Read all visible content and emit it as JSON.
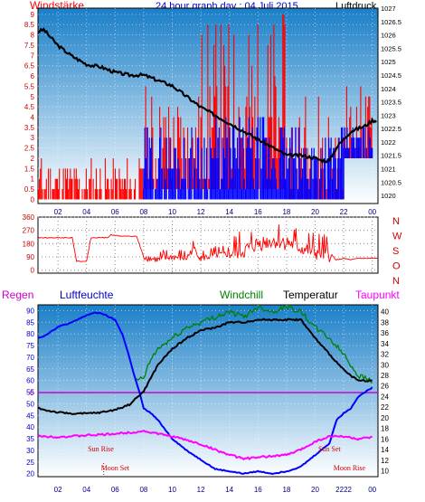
{
  "header": {
    "wind_label": "Windstärke",
    "title": "24 hour graph day : 04 Juli 2015",
    "pressure_label": "Luftdruck",
    "direction_letters": [
      "N",
      "W",
      "S",
      "O",
      "N"
    ],
    "rain_label": "Regen",
    "humidity_label": "Luftfeuchte",
    "windchill_label": "Windchill",
    "temperature_label": "Temperatur",
    "dewpoint_label": "Taupunkt"
  },
  "colors": {
    "panel_top": "#1a7fc8",
    "panel_bottom": "#ffffff",
    "wind": "#ff0000",
    "gust": "#0000ff",
    "pressure": "#000000",
    "direction": "#ff0000",
    "humidity": "#0000ff",
    "windchill": "#008000",
    "temperature": "#000000",
    "dewpoint": "#ff00ff",
    "rain": "#cc00cc",
    "astro": "#cc0000"
  },
  "chart_data": [
    {
      "type": "line",
      "name": "wind-pressure",
      "x_ticks": [
        "02",
        "04",
        "06",
        "08",
        "10",
        "12",
        "14",
        "16",
        "18",
        "20",
        "22",
        "00"
      ],
      "left_axis": {
        "label": "Windstärke",
        "ticks": [
          "0",
          "0.5",
          "1",
          "1.5",
          "2",
          "2.5",
          "3",
          "3.5",
          "4",
          "4.5",
          "5",
          "5.5",
          "6",
          "6.5",
          "7",
          "7.5",
          "8",
          "8.5",
          "9"
        ],
        "ylim": [
          0,
          9
        ]
      },
      "right_axis": {
        "label": "Luftdruck",
        "ticks": [
          "1020",
          "1020.5",
          "1021",
          "1021.5",
          "1022",
          "1022.5",
          "1023",
          "1023.5",
          "1024",
          "1024.5",
          "1025",
          "1025.5",
          "1026",
          "1026.5",
          "1027"
        ],
        "ylim": [
          1019.7,
          1027
        ]
      },
      "pressure": {
        "x": [
          0,
          0.5,
          1,
          1.5,
          2,
          3,
          4,
          5,
          6,
          7,
          8,
          9,
          10,
          11,
          12,
          13,
          14,
          15,
          16,
          17,
          18,
          19,
          20,
          20.5,
          21,
          21.5,
          22,
          22.5,
          23,
          23.5,
          24
        ],
        "y": [
          1026.2,
          1026.1,
          1026.2,
          1025.9,
          1025.6,
          1025.2,
          1024.9,
          1024.8,
          1024.6,
          1024.5,
          1024.5,
          1024.3,
          1024.1,
          1023.7,
          1023.3,
          1023,
          1022.7,
          1022.4,
          1022.1,
          1021.8,
          1021.5,
          1021.5,
          1021.4,
          1021.3,
          1021.3,
          1021.8,
          1022.1,
          1022.4,
          1022.5,
          1022.6,
          1022.8
        ]
      },
      "wind_segments": [
        {
          "x0": 0,
          "x1": 3,
          "low": 0,
          "high": 2
        },
        {
          "x0": 3,
          "x1": 8,
          "low": 0,
          "high": 2
        },
        {
          "x0": 8,
          "x1": 12,
          "low": 0.5,
          "high": 5.5
        },
        {
          "x0": 12,
          "x1": 18,
          "low": 0.5,
          "high": 9
        },
        {
          "x0": 18,
          "x1": 21,
          "low": 0,
          "high": 5.5
        },
        {
          "x0": 21,
          "x1": 22,
          "low": 0,
          "high": 3.5
        },
        {
          "x0": 22,
          "x1": 24,
          "low": 2,
          "high": 5.5
        }
      ],
      "gust_segments": [
        {
          "x0": 0,
          "x1": 8,
          "low": 0,
          "high": 0
        },
        {
          "x0": 8,
          "x1": 12,
          "low": 0,
          "high": 3.5
        },
        {
          "x0": 12,
          "x1": 18,
          "low": 0,
          "high": 4
        },
        {
          "x0": 18,
          "x1": 22,
          "low": 0,
          "high": 3.5
        },
        {
          "x0": 22,
          "x1": 24,
          "low": 2,
          "high": 3.5
        }
      ]
    },
    {
      "type": "line",
      "name": "wind-direction",
      "x_ticks": [
        "02",
        "04",
        "06",
        "08",
        "10",
        "12",
        "14",
        "16",
        "18",
        "20",
        "22",
        "00"
      ],
      "left_axis": {
        "ticks": [
          "0",
          "90",
          "180",
          "270",
          "360"
        ],
        "ylim": [
          -20,
          360
        ]
      },
      "direction": {
        "x": [
          0,
          3,
          3.3,
          4,
          4.3,
          5.5,
          5.7,
          6.5,
          7.5,
          8,
          9,
          10,
          11,
          11.5,
          12,
          13,
          14,
          15,
          16,
          17,
          18,
          19,
          20,
          21,
          21.5,
          22,
          22.5,
          23,
          24
        ],
        "y": [
          220,
          220,
          60,
          60,
          220,
          220,
          240,
          230,
          230,
          90,
          70,
          90,
          80,
          150,
          80,
          100,
          110,
          130,
          180,
          200,
          190,
          150,
          120,
          100,
          70,
          80,
          70,
          80,
          80
        ]
      },
      "noise_range": [
        8,
        21.3
      ]
    },
    {
      "type": "line",
      "name": "temp-humidity",
      "x_ticks": [
        "02",
        "04",
        "06",
        "08",
        "10",
        "12",
        "14",
        "16",
        "18",
        "20",
        "22",
        "00"
      ],
      "left_axis": {
        "ticks": [
          "20",
          "25",
          "30",
          "35",
          "40",
          "45",
          "50",
          "55",
          "60",
          "65",
          "70",
          "75",
          "80",
          "85",
          "90"
        ],
        "ylim": [
          18.7,
          92.5
        ]
      },
      "right_axis": {
        "ticks": [
          "10",
          "12",
          "14",
          "16",
          "18",
          "20",
          "22",
          "24",
          "26",
          "28",
          "30",
          "32",
          "34",
          "36",
          "38",
          "40"
        ],
        "ylim": [
          8.9,
          41.3
        ]
      },
      "rain_zero_label": "0",
      "series": [
        {
          "name": "Luftfeuchte",
          "axis": "left",
          "x": [
            0,
            0.3,
            1,
            1.5,
            2,
            3,
            4,
            4.5,
            5,
            6,
            6.5,
            7,
            7.3,
            7.7,
            8,
            8.5,
            9,
            10,
            11,
            12,
            13,
            14,
            15,
            16,
            17,
            18,
            19,
            20,
            21,
            21.5,
            22,
            22.5,
            23,
            23.5,
            24
          ],
          "y": [
            74,
            78,
            79,
            81,
            83,
            85,
            88,
            89,
            89,
            86,
            80,
            70,
            63,
            55,
            48,
            46,
            43,
            35,
            30,
            26,
            22,
            21,
            20,
            21,
            20,
            21,
            23,
            28,
            33,
            43,
            46,
            48,
            53,
            55,
            57
          ]
        },
        {
          "name": "Windchill",
          "axis": "right",
          "x": [
            7.5,
            8,
            8.5,
            9,
            10,
            11,
            12,
            13,
            14,
            15,
            16,
            17,
            18,
            19,
            20,
            21,
            22,
            23,
            24
          ],
          "y": [
            27,
            27.5,
            31,
            33,
            35,
            37,
            38,
            39,
            40,
            39,
            41,
            40,
            41,
            40,
            37,
            35,
            32,
            28,
            27
          ]
        },
        {
          "name": "Temperatur",
          "axis": "right",
          "x": [
            0,
            0.5,
            1,
            2,
            3,
            4,
            5,
            6,
            7,
            8,
            9,
            10,
            11,
            12,
            13,
            14,
            15,
            16,
            17,
            18,
            19,
            20,
            21,
            22,
            23,
            24
          ],
          "y": [
            22.5,
            22,
            21.5,
            21,
            20.8,
            20.8,
            21,
            21.5,
            22.5,
            25,
            30,
            33,
            35,
            36.5,
            37,
            38,
            38,
            38.5,
            38.5,
            38.5,
            38.5,
            35,
            32,
            29,
            27,
            27
          ]
        },
        {
          "name": "Taupunkt",
          "axis": "right",
          "x": [
            0,
            1,
            2,
            3,
            4,
            5,
            6,
            7,
            8,
            9,
            10,
            11,
            12,
            13,
            14,
            15,
            16,
            17,
            18,
            19,
            20,
            21,
            22,
            23,
            24
          ],
          "y": [
            16.5,
            16.5,
            16.4,
            16.5,
            16.7,
            16.8,
            17,
            17.2,
            17.5,
            17,
            16.5,
            15.8,
            15,
            14,
            13,
            12.3,
            12.5,
            12.8,
            13,
            14,
            15.5,
            16.5,
            16.5,
            16,
            16.3
          ]
        }
      ],
      "annotations": [
        {
          "text": "Sun Rise",
          "x": 5
        },
        {
          "text": "Moon Set",
          "x": 6
        },
        {
          "text": "Sun Set",
          "x": 21
        },
        {
          "text": "Moon Rise",
          "x": 22.4
        }
      ],
      "x_bottom_labels": [
        "02",
        "04",
        "06",
        "08",
        "10",
        "12",
        "14",
        "16",
        "18",
        "20",
        "2222",
        "00"
      ]
    }
  ]
}
